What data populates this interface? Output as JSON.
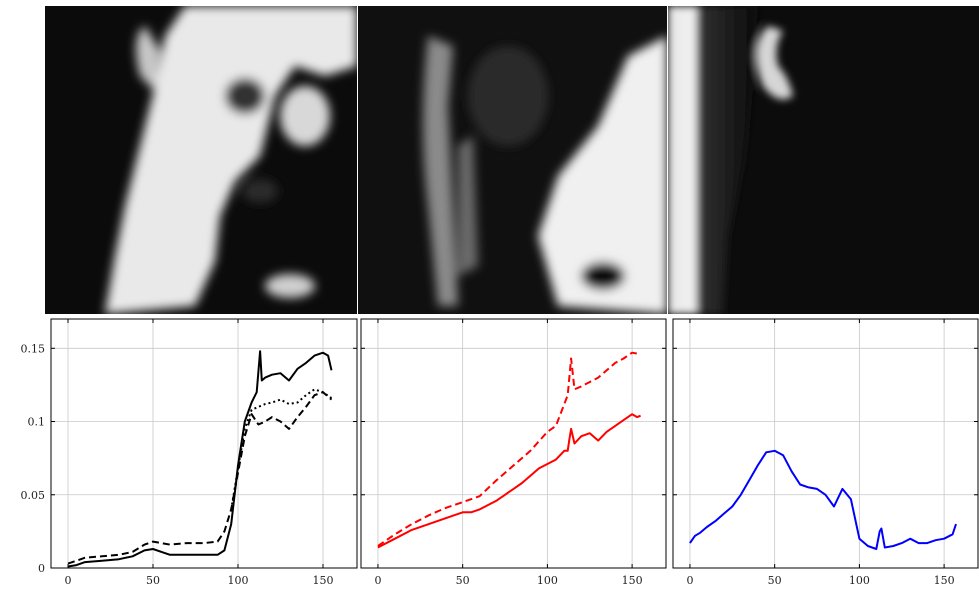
{
  "images": [
    {
      "name": "grayscale-image-a",
      "tone": "bright-left"
    },
    {
      "name": "grayscale-image-b",
      "tone": "dark-left"
    },
    {
      "name": "grayscale-image-c",
      "tone": "gradient-left"
    }
  ],
  "chart_data": [
    {
      "type": "line",
      "title": "",
      "xlabel": "",
      "ylabel": "",
      "xlim": [
        -10,
        170
      ],
      "ylim": [
        0,
        0.17
      ],
      "xticks": [
        "0",
        "50",
        "100",
        "150"
      ],
      "yticks": [
        "0",
        "0.05",
        "0.1",
        "0.15"
      ],
      "grid": true,
      "series": [
        {
          "color": "#000000",
          "style": "solid",
          "x": [
            0,
            5,
            10,
            20,
            30,
            38,
            45,
            50,
            55,
            60,
            70,
            80,
            88,
            92,
            96,
            100,
            104,
            108,
            111,
            113,
            114,
            116,
            120,
            125,
            130,
            135,
            140,
            145,
            150,
            153,
            155
          ],
          "y": [
            0.001,
            0.002,
            0.004,
            0.005,
            0.006,
            0.008,
            0.012,
            0.013,
            0.011,
            0.009,
            0.009,
            0.009,
            0.009,
            0.012,
            0.03,
            0.07,
            0.1,
            0.113,
            0.12,
            0.148,
            0.128,
            0.13,
            0.132,
            0.133,
            0.128,
            0.136,
            0.14,
            0.145,
            0.147,
            0.145,
            0.135
          ]
        },
        {
          "color": "#000000",
          "style": "dashed",
          "x": [
            0,
            5,
            10,
            20,
            30,
            38,
            45,
            50,
            55,
            60,
            70,
            80,
            88,
            92,
            96,
            100,
            104,
            108,
            112,
            116,
            120,
            125,
            130,
            135,
            140,
            145,
            150,
            155
          ],
          "y": [
            0.003,
            0.005,
            0.007,
            0.008,
            0.009,
            0.011,
            0.016,
            0.018,
            0.017,
            0.016,
            0.017,
            0.017,
            0.018,
            0.025,
            0.04,
            0.065,
            0.09,
            0.105,
            0.098,
            0.1,
            0.103,
            0.1,
            0.095,
            0.103,
            0.11,
            0.118,
            0.12,
            0.115
          ]
        },
        {
          "color": "#000000",
          "style": "dotted",
          "x": [
            96,
            100,
            104,
            108,
            112,
            116,
            120,
            125,
            130,
            135,
            140,
            145,
            150,
            155
          ],
          "y": [
            0.04,
            0.068,
            0.095,
            0.108,
            0.11,
            0.112,
            0.113,
            0.115,
            0.112,
            0.113,
            0.118,
            0.122,
            0.12,
            0.116
          ]
        }
      ]
    },
    {
      "type": "line",
      "title": "",
      "xlabel": "",
      "ylabel": "",
      "xlim": [
        -10,
        170
      ],
      "ylim": [
        0,
        0.17
      ],
      "xticks": [
        "0",
        "50",
        "100",
        "150"
      ],
      "grid": true,
      "series": [
        {
          "color": "#ff0000",
          "style": "solid",
          "x": [
            0,
            10,
            20,
            30,
            40,
            50,
            55,
            60,
            65,
            70,
            75,
            80,
            85,
            90,
            95,
            100,
            105,
            110,
            112,
            113,
            114,
            116,
            120,
            125,
            130,
            135,
            140,
            145,
            150,
            153,
            155
          ],
          "y": [
            0.014,
            0.02,
            0.026,
            0.03,
            0.034,
            0.038,
            0.038,
            0.04,
            0.043,
            0.046,
            0.05,
            0.054,
            0.058,
            0.063,
            0.068,
            0.071,
            0.074,
            0.08,
            0.08,
            0.088,
            0.095,
            0.085,
            0.09,
            0.092,
            0.087,
            0.093,
            0.097,
            0.101,
            0.105,
            0.103,
            0.104
          ]
        },
        {
          "color": "#ff0000",
          "style": "dashed",
          "x": [
            0,
            10,
            20,
            30,
            40,
            50,
            55,
            60,
            70,
            80,
            90,
            100,
            105,
            110,
            112,
            114,
            116,
            120,
            125,
            130,
            135,
            140,
            145,
            150,
            155
          ],
          "y": [
            0.015,
            0.023,
            0.03,
            0.036,
            0.041,
            0.045,
            0.047,
            0.049,
            0.06,
            0.07,
            0.08,
            0.093,
            0.097,
            0.112,
            0.118,
            0.143,
            0.122,
            0.124,
            0.127,
            0.13,
            0.135,
            0.14,
            0.143,
            0.147,
            0.146
          ]
        }
      ]
    },
    {
      "type": "line",
      "title": "",
      "xlabel": "",
      "ylabel": "",
      "xlim": [
        -10,
        170
      ],
      "ylim": [
        0,
        0.17
      ],
      "xticks": [
        "0",
        "50",
        "100",
        "150"
      ],
      "grid": true,
      "series": [
        {
          "color": "#0000ff",
          "style": "solid",
          "x": [
            0,
            3,
            6,
            10,
            15,
            20,
            25,
            30,
            35,
            40,
            45,
            50,
            55,
            60,
            65,
            70,
            75,
            80,
            85,
            90,
            95,
            100,
            105,
            110,
            112,
            113,
            115,
            120,
            125,
            130,
            135,
            140,
            145,
            150,
            155,
            157
          ],
          "y": [
            0.017,
            0.022,
            0.024,
            0.028,
            0.032,
            0.037,
            0.042,
            0.05,
            0.06,
            0.07,
            0.079,
            0.08,
            0.077,
            0.066,
            0.057,
            0.055,
            0.054,
            0.05,
            0.042,
            0.054,
            0.047,
            0.02,
            0.015,
            0.013,
            0.025,
            0.027,
            0.014,
            0.015,
            0.017,
            0.02,
            0.017,
            0.017,
            0.019,
            0.02,
            0.023,
            0.03
          ]
        }
      ]
    }
  ]
}
